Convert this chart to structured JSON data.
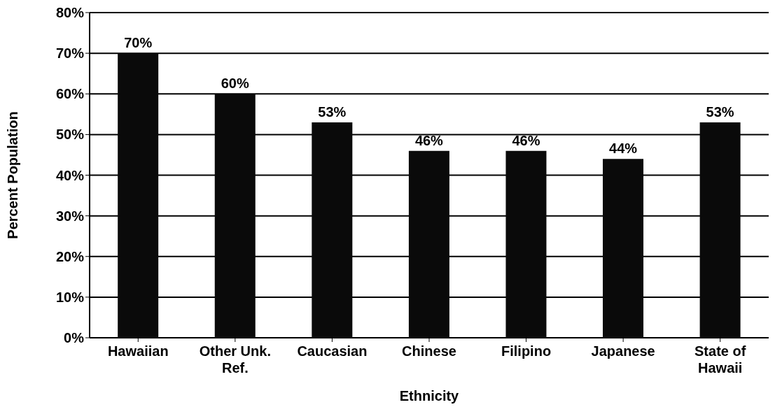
{
  "chart_data": {
    "type": "bar",
    "xlabel": "Ethnicity",
    "ylabel": "Percent Population",
    "categories": [
      "Hawaiian",
      "Other Unk. Ref.",
      "Caucasian",
      "Chinese",
      "Filipino",
      "Japanese",
      "State of Hawaii"
    ],
    "values": [
      70,
      60,
      53,
      46,
      46,
      44,
      53
    ],
    "value_labels": [
      "70%",
      "60%",
      "53%",
      "46%",
      "46%",
      "44%",
      "53%"
    ],
    "color": "#0a0a0a",
    "ylim": [
      0,
      80
    ],
    "yticks": [
      {
        "value": 0,
        "label": "0%"
      },
      {
        "value": 10,
        "label": "10%"
      },
      {
        "value": 20,
        "label": "20%"
      },
      {
        "value": 30,
        "label": "30%"
      },
      {
        "value": 40,
        "label": "40%"
      },
      {
        "value": 50,
        "label": "50%"
      },
      {
        "value": 60,
        "label": "60%"
      },
      {
        "value": 70,
        "label": "70%"
      },
      {
        "value": 80,
        "label": "80%"
      }
    ],
    "grid": "y"
  }
}
